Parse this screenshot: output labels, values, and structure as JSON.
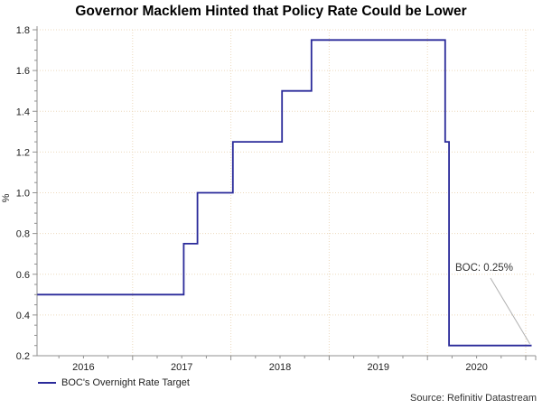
{
  "title": "Governor Macklem Hinted that Policy Rate Could be Lower",
  "source": "Source: Refinitiv Datastream",
  "legend": {
    "position": "bottom-left",
    "items": [
      {
        "label": "BOC's Overnight Rate Target",
        "color": "#2a2a9a"
      }
    ]
  },
  "annotation": {
    "text": "BOC: 0.25%"
  },
  "colors": {
    "line": "#2a2a9a",
    "grid": "#ecd9bd",
    "axis": "#909090",
    "tick_label": "#222222",
    "callout": "#b0b0b0"
  },
  "chart_data": {
    "type": "line",
    "step": true,
    "title": "Governor Macklem Hinted that Policy Rate Could be Lower",
    "xlabel": "",
    "ylabel": "%",
    "ylim": [
      0.2,
      1.8
    ],
    "xlim": [
      2016.0,
      2021.09
    ],
    "grid": "dotted",
    "y_major_tick_step": 0.2,
    "y_minor_tick_step": 0.05,
    "x_minor_tick_step": 0.25,
    "x_year_boundaries": [
      2017,
      2018,
      2019,
      2020,
      2021
    ],
    "x_year_labels": [
      "2016",
      "2017",
      "2018",
      "2019",
      "2020"
    ],
    "y_tick_labels": [
      "0.2",
      "0.4",
      "0.6",
      "0.8",
      "1.0",
      "1.2",
      "1.4",
      "1.6",
      "1.8"
    ],
    "legend_entries": [
      "BOC's Overnight Rate Target"
    ],
    "series": [
      {
        "name": "BOC's Overnight Rate Target",
        "color": "#2a2a9a",
        "points": [
          [
            2016.03,
            0.5
          ],
          [
            2017.52,
            0.5
          ],
          [
            2017.52,
            0.75
          ],
          [
            2017.66,
            0.75
          ],
          [
            2017.66,
            1.0
          ],
          [
            2018.02,
            1.0
          ],
          [
            2018.02,
            1.25
          ],
          [
            2018.52,
            1.25
          ],
          [
            2018.52,
            1.5
          ],
          [
            2018.82,
            1.5
          ],
          [
            2018.82,
            1.75
          ],
          [
            2020.18,
            1.75
          ],
          [
            2020.18,
            1.25
          ],
          [
            2020.22,
            1.25
          ],
          [
            2020.22,
            0.25
          ],
          [
            2021.06,
            0.25
          ]
        ]
      }
    ],
    "annotation": {
      "text": "BOC: 0.25%",
      "points_to": [
        2021.06,
        0.25
      ],
      "final_value_pct": 0.25
    }
  }
}
